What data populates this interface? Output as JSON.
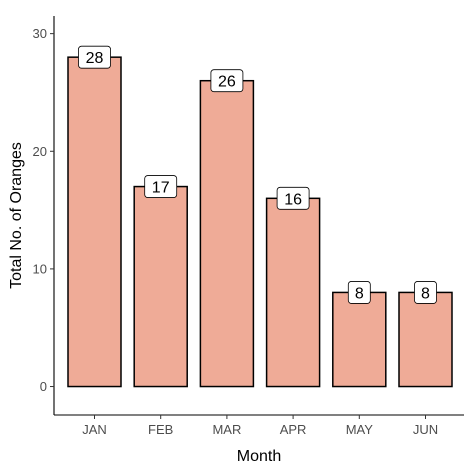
{
  "chart_data": {
    "type": "bar",
    "categories": [
      "JAN",
      "FEB",
      "MAR",
      "APR",
      "MAY",
      "JUN"
    ],
    "values": [
      28,
      17,
      26,
      16,
      8,
      8
    ],
    "title": "",
    "xlabel": "Month",
    "ylabel": "Total No. of Oranges",
    "ylim": [
      0,
      30
    ],
    "yticks": [
      0,
      10,
      20,
      30
    ],
    "grid": false,
    "data_labels": true,
    "colors": {
      "bar_fill": "#efab97",
      "bar_stroke": "#000000",
      "label_box_fill": "#ffffff",
      "axis": "#000000"
    }
  }
}
